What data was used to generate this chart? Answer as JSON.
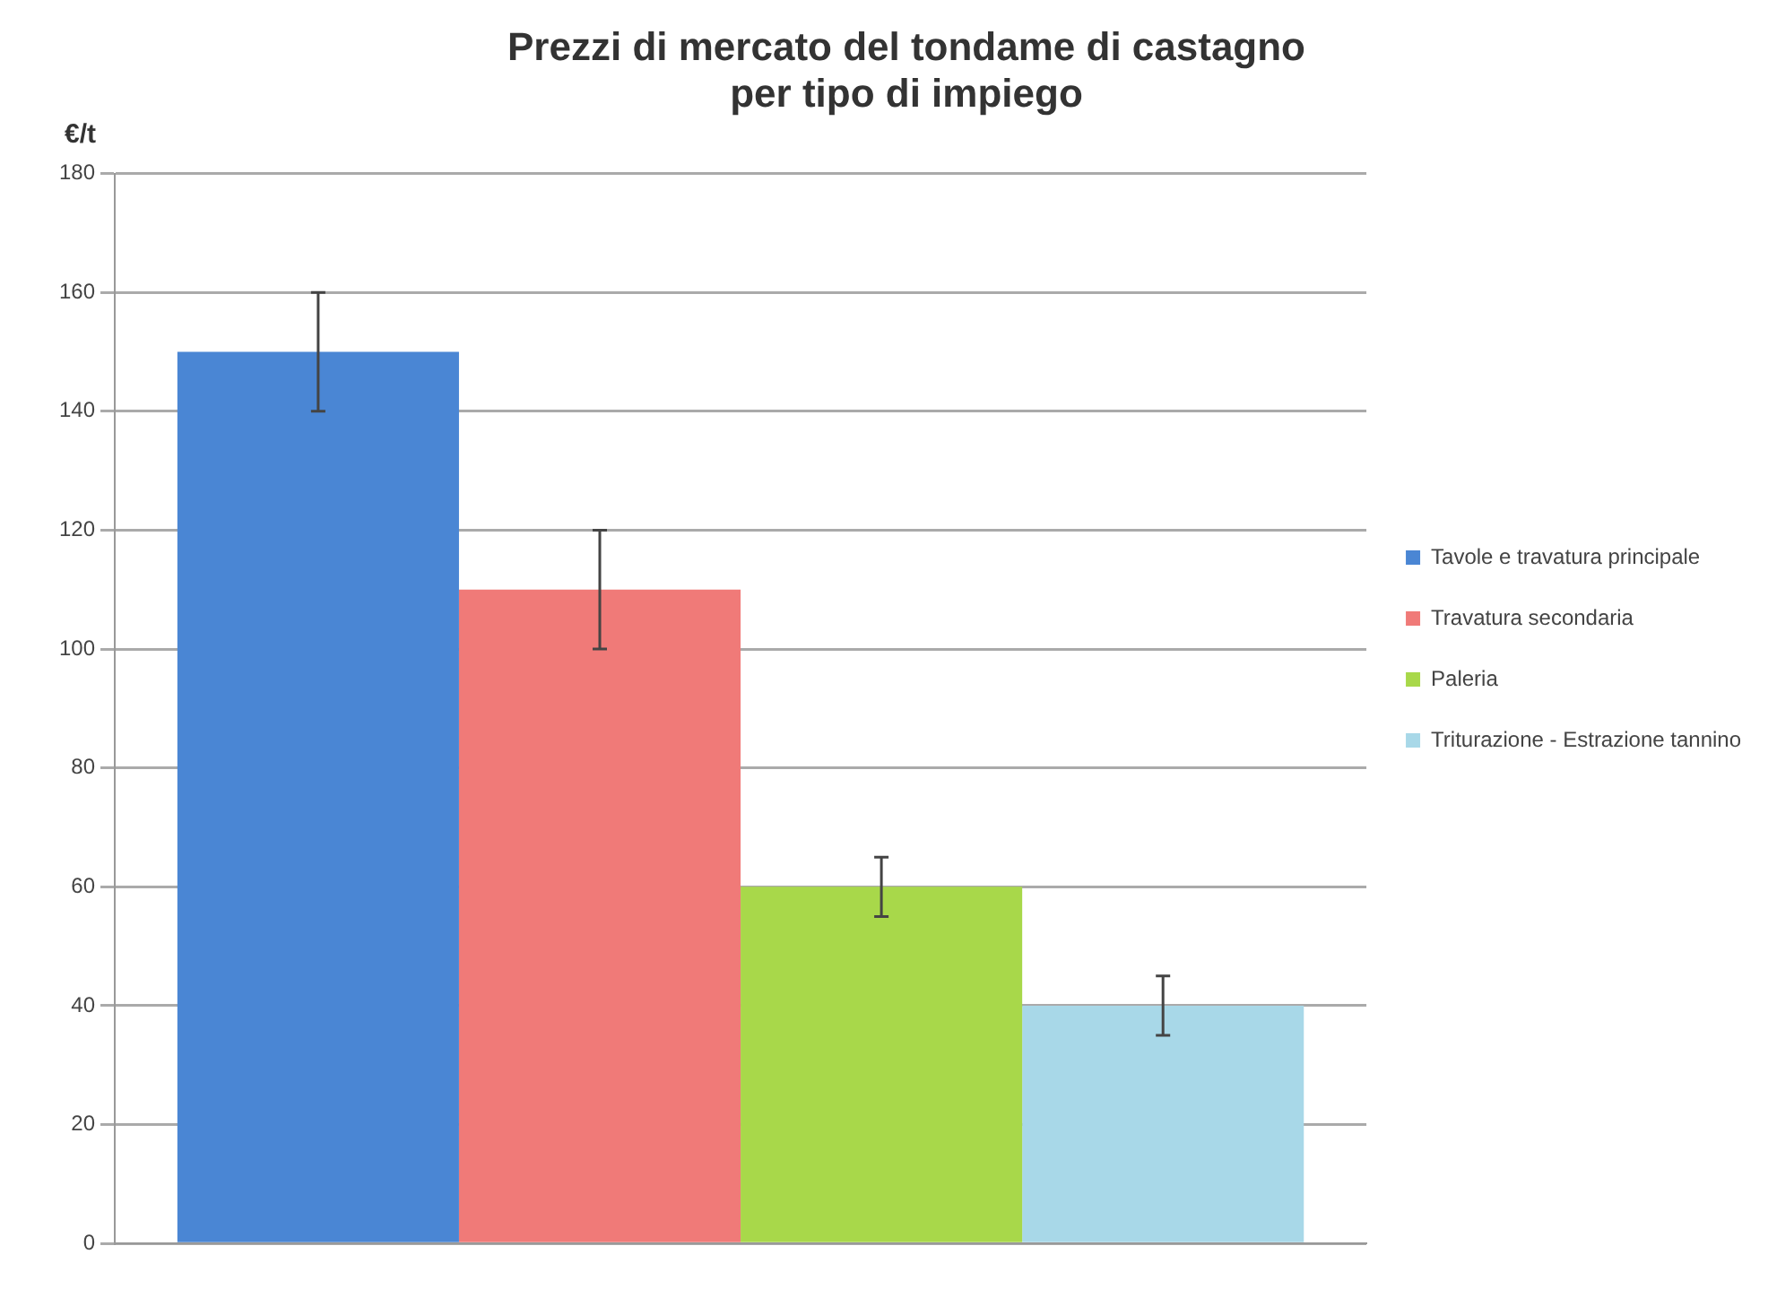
{
  "chart_data": {
    "type": "bar",
    "title": "Prezzi di mercato del tondame di castagno per tipo di impiego",
    "ylabel": "€/t",
    "categories": [
      null
    ],
    "series": [
      {
        "name": "Tavole e travatura principale",
        "color": "#4a86d4",
        "values": [
          150
        ],
        "errors": [
          10
        ]
      },
      {
        "name": "Travatura secondaria",
        "color": "#f07a78",
        "values": [
          110
        ],
        "errors": [
          10
        ]
      },
      {
        "name": "Paleria",
        "color": "#a8d84a",
        "values": [
          60
        ],
        "errors": [
          5
        ]
      },
      {
        "name": "Triturazione - Estrazione tannino",
        "color": "#a8d8e8",
        "values": [
          40
        ],
        "errors": [
          5
        ]
      }
    ],
    "ylim": [
      0,
      180
    ],
    "yticks": [
      0,
      20,
      40,
      60,
      80,
      100,
      120,
      140,
      160,
      180
    ],
    "grid": "y",
    "legend": "right"
  }
}
